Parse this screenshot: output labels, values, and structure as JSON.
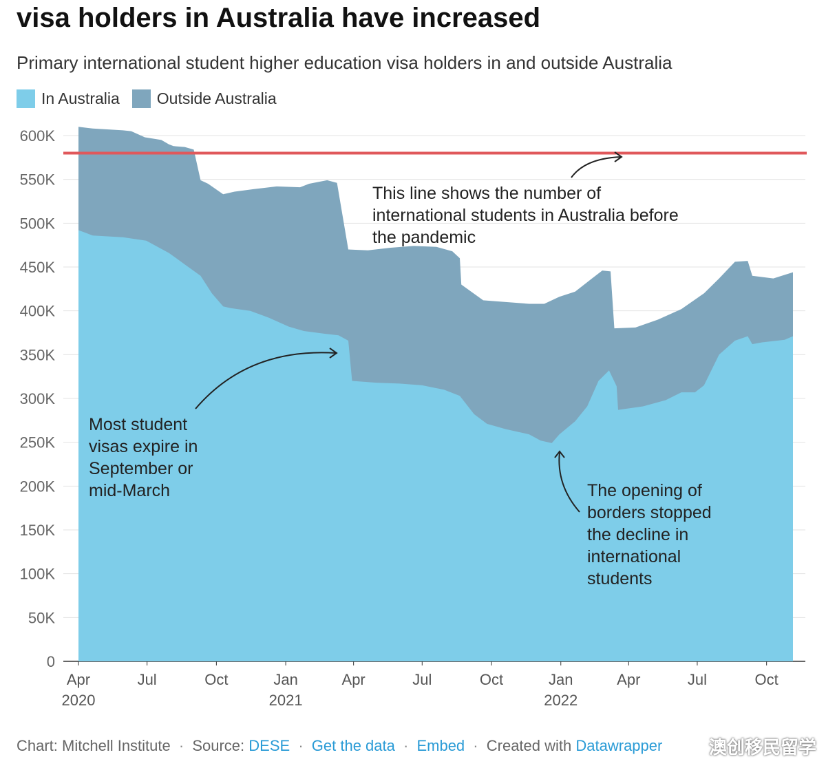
{
  "title": "visa holders in Australia have increased",
  "subtitle": "Primary international student higher education visa holders in and outside Australia",
  "legend": [
    {
      "label": "In Australia",
      "color": "#7ecde9"
    },
    {
      "label": "Outside Australia",
      "color": "#7fa6bd"
    }
  ],
  "annotations": {
    "pre_pandemic": [
      "This line shows the number of",
      "international students in Australia before",
      "the pandemic"
    ],
    "expire": [
      "Most student",
      "visas expire in",
      "September or",
      "mid-March"
    ],
    "borders": [
      "The opening of",
      "borders stopped",
      "the decline in",
      "international",
      "students"
    ]
  },
  "footer": {
    "chart_by": "Chart: Mitchell Institute",
    "source_label": "Source:",
    "source_link": "DESE",
    "get_data": "Get the data",
    "embed": "Embed",
    "created_with": "Created with",
    "datawrapper": "Datawrapper",
    "separator": "·"
  },
  "watermark": "澳创移民留学",
  "chart_data": {
    "type": "area",
    "stacked": true,
    "title": "visa holders in Australia have increased",
    "subtitle": "Primary international student higher education visa holders in and outside Australia",
    "ylim": [
      0,
      600000
    ],
    "y_ticks": [
      0,
      50000,
      100000,
      150000,
      200000,
      250000,
      300000,
      350000,
      400000,
      450000,
      500000,
      550000,
      600000
    ],
    "y_tick_labels": [
      "0",
      "50K",
      "100K",
      "150K",
      "200K",
      "250K",
      "300K",
      "350K",
      "400K",
      "450K",
      "500K",
      "550K",
      "600K"
    ],
    "x_ticks": [
      {
        "date": "2020-04-01",
        "label": "Apr",
        "year": "2020"
      },
      {
        "date": "2020-07-01",
        "label": "Jul",
        "year": ""
      },
      {
        "date": "2020-10-01",
        "label": "Oct",
        "year": ""
      },
      {
        "date": "2021-01-01",
        "label": "Jan",
        "year": "2021"
      },
      {
        "date": "2021-04-01",
        "label": "Apr",
        "year": ""
      },
      {
        "date": "2021-07-01",
        "label": "Jul",
        "year": ""
      },
      {
        "date": "2021-10-01",
        "label": "Oct",
        "year": ""
      },
      {
        "date": "2022-01-01",
        "label": "Jan",
        "year": "2022"
      },
      {
        "date": "2022-04-01",
        "label": "Apr",
        "year": ""
      },
      {
        "date": "2022-07-01",
        "label": "Jul",
        "year": ""
      },
      {
        "date": "2022-10-01",
        "label": "Oct",
        "year": ""
      }
    ],
    "reference_line": {
      "value": 580000,
      "color": "#e0585b"
    },
    "grid": true,
    "legend_position": "top-left",
    "series": [
      {
        "name": "In Australia",
        "color": "#7ecde9",
        "points": [
          [
            "2020-04-01",
            492000
          ],
          [
            "2020-04-20",
            486000
          ],
          [
            "2020-05-30",
            484000
          ],
          [
            "2020-06-30",
            480000
          ],
          [
            "2020-07-30",
            466000
          ],
          [
            "2020-08-20",
            453000
          ],
          [
            "2020-09-10",
            440000
          ],
          [
            "2020-09-25",
            420000
          ],
          [
            "2020-10-10",
            405000
          ],
          [
            "2020-10-20",
            403000
          ],
          [
            "2020-11-15",
            400000
          ],
          [
            "2020-12-10",
            392000
          ],
          [
            "2021-01-05",
            382000
          ],
          [
            "2021-01-25",
            377000
          ],
          [
            "2021-02-20",
            374000
          ],
          [
            "2021-03-12",
            372000
          ],
          [
            "2021-03-25",
            366000
          ],
          [
            "2021-03-30",
            320000
          ],
          [
            "2021-05-01",
            318000
          ],
          [
            "2021-06-01",
            317000
          ],
          [
            "2021-07-01",
            315000
          ],
          [
            "2021-07-30",
            310000
          ],
          [
            "2021-08-20",
            303000
          ],
          [
            "2021-09-08",
            282000
          ],
          [
            "2021-09-25",
            271000
          ],
          [
            "2021-10-20",
            265000
          ],
          [
            "2021-11-20",
            259000
          ],
          [
            "2021-12-05",
            252000
          ],
          [
            "2021-12-20",
            249000
          ],
          [
            "2021-12-30",
            259000
          ],
          [
            "2022-01-20",
            274000
          ],
          [
            "2022-02-05",
            291000
          ],
          [
            "2022-02-20",
            320000
          ],
          [
            "2022-03-06",
            332000
          ],
          [
            "2022-03-16",
            314000
          ],
          [
            "2022-03-18",
            287000
          ],
          [
            "2022-04-20",
            291000
          ],
          [
            "2022-05-20",
            298000
          ],
          [
            "2022-06-10",
            307000
          ],
          [
            "2022-06-28",
            307000
          ],
          [
            "2022-07-10",
            315000
          ],
          [
            "2022-07-30",
            350000
          ],
          [
            "2022-08-20",
            366000
          ],
          [
            "2022-09-06",
            371000
          ],
          [
            "2022-09-12",
            362000
          ],
          [
            "2022-09-25",
            364000
          ],
          [
            "2022-10-25",
            367000
          ],
          [
            "2022-11-05",
            371000
          ]
        ]
      },
      {
        "name": "Outside Australia",
        "color": "#7fa6bd",
        "note": "top edge of stacked area = total visa holders",
        "total_points": [
          [
            "2020-04-01",
            610000
          ],
          [
            "2020-04-20",
            608000
          ],
          [
            "2020-05-30",
            606000
          ],
          [
            "2020-06-10",
            605000
          ],
          [
            "2020-06-28",
            598000
          ],
          [
            "2020-07-20",
            595000
          ],
          [
            "2020-07-30",
            590000
          ],
          [
            "2020-08-05",
            588000
          ],
          [
            "2020-08-20",
            587000
          ],
          [
            "2020-09-01",
            584000
          ],
          [
            "2020-09-10",
            549000
          ],
          [
            "2020-09-20",
            545000
          ],
          [
            "2020-10-10",
            533000
          ],
          [
            "2020-10-25",
            536000
          ],
          [
            "2020-11-20",
            539000
          ],
          [
            "2020-12-20",
            542000
          ],
          [
            "2021-01-20",
            541000
          ],
          [
            "2021-02-01",
            545000
          ],
          [
            "2021-02-25",
            549000
          ],
          [
            "2021-03-10",
            546000
          ],
          [
            "2021-03-25",
            470000
          ],
          [
            "2021-04-20",
            469000
          ],
          [
            "2021-05-20",
            472000
          ],
          [
            "2021-06-20",
            474000
          ],
          [
            "2021-07-20",
            473000
          ],
          [
            "2021-08-10",
            468000
          ],
          [
            "2021-08-20",
            460000
          ],
          [
            "2021-08-22",
            430000
          ],
          [
            "2021-09-20",
            412000
          ],
          [
            "2021-10-20",
            410000
          ],
          [
            "2021-11-20",
            408000
          ],
          [
            "2021-12-10",
            408000
          ],
          [
            "2021-12-30",
            416000
          ],
          [
            "2022-01-20",
            422000
          ],
          [
            "2022-02-10",
            436000
          ],
          [
            "2022-02-25",
            446000
          ],
          [
            "2022-03-08",
            445000
          ],
          [
            "2022-03-13",
            380000
          ],
          [
            "2022-04-10",
            381000
          ],
          [
            "2022-05-10",
            390000
          ],
          [
            "2022-06-10",
            402000
          ],
          [
            "2022-07-10",
            420000
          ],
          [
            "2022-07-30",
            437000
          ],
          [
            "2022-08-20",
            456000
          ],
          [
            "2022-09-06",
            457000
          ],
          [
            "2022-09-12",
            440000
          ],
          [
            "2022-10-10",
            437000
          ],
          [
            "2022-11-05",
            444000
          ]
        ]
      }
    ]
  }
}
